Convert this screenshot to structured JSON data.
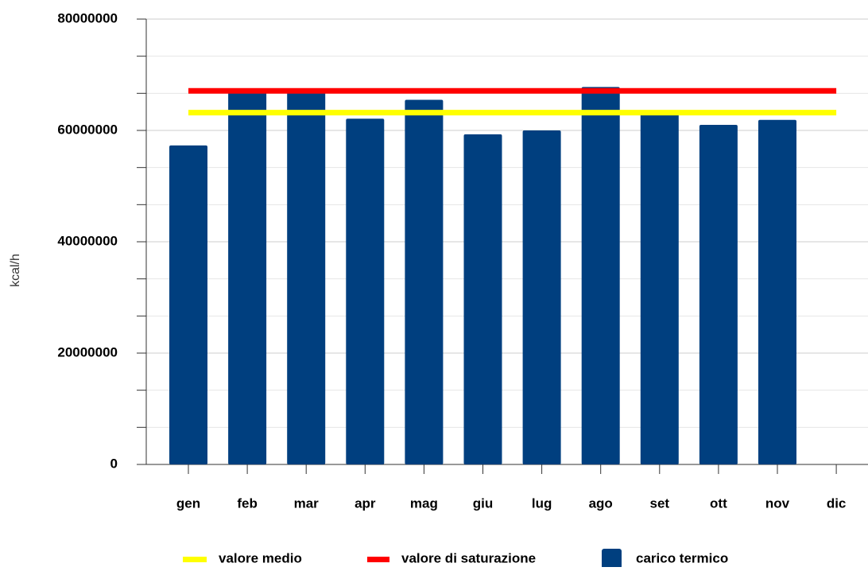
{
  "chart_data": {
    "type": "bar",
    "categories": [
      "gen",
      "feb",
      "mar",
      "apr",
      "mag",
      "giu",
      "lug",
      "ago",
      "set",
      "ott",
      "nov",
      "dic"
    ],
    "series": [
      {
        "name": "carico termico",
        "color": "#003f7f",
        "values": [
          57300000,
          67500000,
          67500000,
          62100000,
          65500000,
          59300000,
          60000000,
          67800000,
          63400000,
          61000000,
          61900000,
          null
        ]
      }
    ],
    "lines": [
      {
        "name": "valore medio",
        "color": "#ffff00",
        "value": 63200000
      },
      {
        "name": "valore di saturazione",
        "color": "#ff0000",
        "value": 67100000
      }
    ],
    "y_label": "kcal/h",
    "ylim": [
      0,
      80000000
    ],
    "yticks": [
      0,
      20000000,
      40000000,
      60000000,
      80000000
    ],
    "yticks_minor": [
      6666667,
      13333333,
      26666667,
      33333333,
      46666667,
      53333333,
      66666667,
      73333333
    ],
    "grid": true,
    "legend": "bottom"
  }
}
